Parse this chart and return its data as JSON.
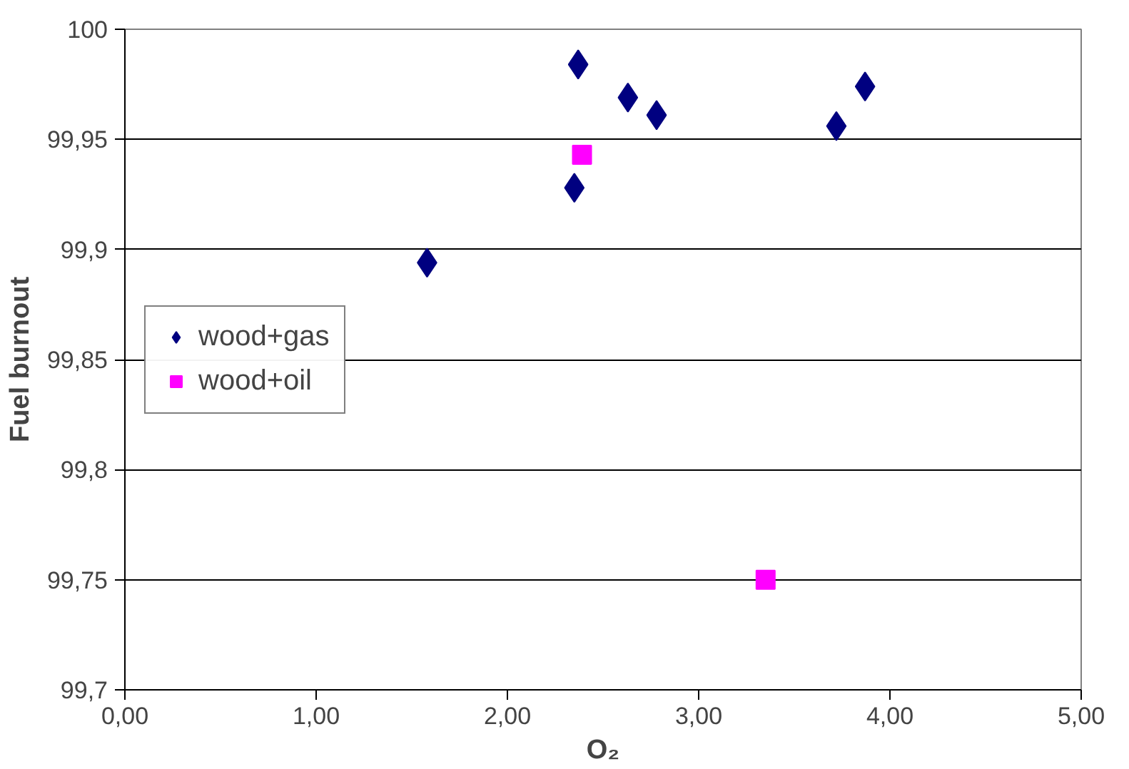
{
  "chart_data": {
    "type": "scatter",
    "xlabel": "O₂",
    "ylabel": "Fuel burnout",
    "xlim": [
      0,
      5
    ],
    "ylim": [
      99.7,
      100
    ],
    "xticks": [
      {
        "value": 0,
        "label": "0,00"
      },
      {
        "value": 1,
        "label": "1,00"
      },
      {
        "value": 2,
        "label": "2,00"
      },
      {
        "value": 3,
        "label": "3,00"
      },
      {
        "value": 4,
        "label": "4,00"
      },
      {
        "value": 5,
        "label": "5,00"
      }
    ],
    "yticks": [
      {
        "value": 99.7,
        "label": "99,7"
      },
      {
        "value": 99.75,
        "label": "99,75"
      },
      {
        "value": 99.8,
        "label": "99,8"
      },
      {
        "value": 99.85,
        "label": "99,85"
      },
      {
        "value": 99.9,
        "label": "99,9"
      },
      {
        "value": 99.95,
        "label": "99,95"
      },
      {
        "value": 100,
        "label": "100"
      }
    ],
    "grid": "y",
    "legend": "left",
    "series": [
      {
        "name": "wood+gas",
        "color": "#000080",
        "marker": "diamond",
        "x": [
          1.58,
          2.37,
          2.35,
          2.63,
          2.78,
          3.72,
          3.87
        ],
        "values": [
          99.894,
          99.984,
          99.928,
          99.969,
          99.961,
          99.956,
          99.974
        ]
      },
      {
        "name": "wood+oil",
        "color": "#ff00ff",
        "marker": "square",
        "x": [
          2.39,
          3.35
        ],
        "values": [
          99.943,
          99.75
        ]
      }
    ]
  }
}
